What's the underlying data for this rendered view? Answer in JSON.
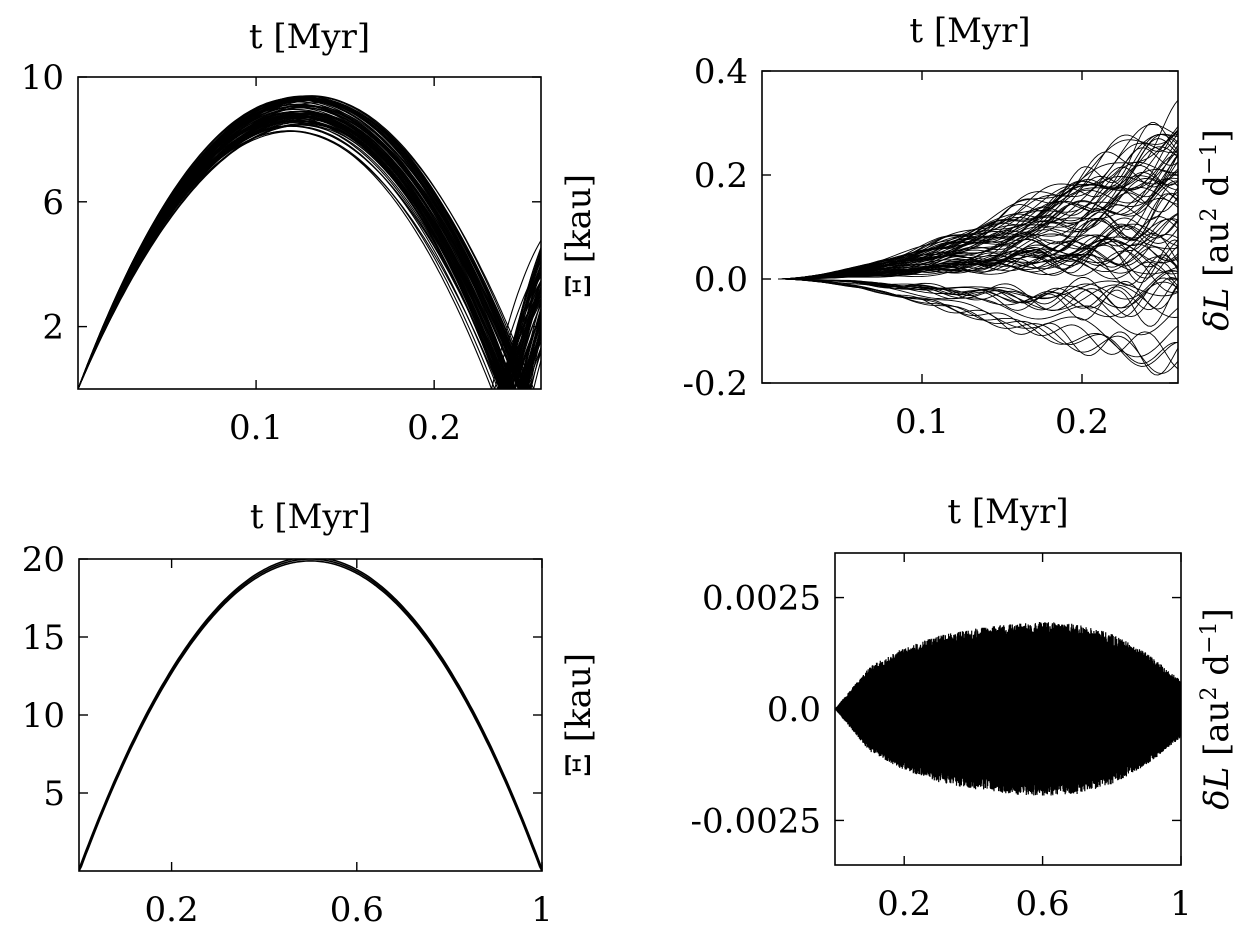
{
  "chart_data": [
    {
      "type": "line",
      "title": "t [Myr]",
      "xlabel": "",
      "ylabel": "Ξ [kau]",
      "xlim": [
        0.0,
        0.26
      ],
      "ylim": [
        0.0,
        10.0
      ],
      "xticks": [
        0.1,
        0.2
      ],
      "yticks": [
        2,
        6,
        10
      ],
      "xtick_labels": [
        "0.1",
        "0.2"
      ],
      "ytick_labels": [
        "2",
        "6",
        "10"
      ],
      "grid": false,
      "legend": "none",
      "description_of_series": "ensemble of ~80 parabolic trajectories starting at 0, peaking between 8.2 and 9.4 near t=0.11–0.14, returning to 0 near t=0.23–0.255, then rising again",
      "series_envelope": {
        "peak_min": 8.2,
        "peak_max": 9.4,
        "peak_t_min": 0.115,
        "peak_t_max": 0.14,
        "end_t_min": 0.228,
        "end_t_max": 0.255
      }
    },
    {
      "type": "line",
      "title": "t [Myr]",
      "xlabel": "",
      "ylabel": "δL [au² d⁻¹]",
      "ylabel_parts": {
        "sym": "δL",
        "open": "[au",
        "sup1": "2",
        "mid": " d",
        "sup2": "−1",
        "close": "]"
      },
      "xlim": [
        0.0,
        0.26
      ],
      "ylim": [
        -0.2,
        0.4
      ],
      "xticks": [
        0.1,
        0.2
      ],
      "yticks": [
        -0.2,
        0.0,
        0.2,
        0.4
      ],
      "xtick_labels": [
        "0.1",
        "0.2"
      ],
      "ytick_labels": [
        "-0.2",
        "0.0",
        "0.2",
        "0.4"
      ],
      "grid": false,
      "legend": "none",
      "description_of_series": "ensemble of ~80 trajectories fanning out from 0 at t≈0.01, upper envelope reaching 0.31 at t=0.26, lower envelope near -0.16 at t≈0.2",
      "series_envelope": {
        "start_t": 0.01,
        "max_final": 0.31,
        "min_final": -0.16
      }
    },
    {
      "type": "line",
      "title": "t [Myr]",
      "xlabel": "",
      "ylabel": "Ξ [kau]",
      "xlim": [
        0.0,
        1.0
      ],
      "ylim": [
        0.0,
        20.0
      ],
      "xticks": [
        0.2,
        0.6,
        1.0
      ],
      "yticks": [
        5,
        10,
        15,
        20
      ],
      "xtick_labels": [
        "0.2",
        "0.6",
        "1"
      ],
      "ytick_labels": [
        "5",
        "10",
        "15",
        "20"
      ],
      "grid": false,
      "legend": "none",
      "x": [
        0.0,
        0.1,
        0.2,
        0.3,
        0.4,
        0.5,
        0.6,
        0.7,
        0.8,
        0.9,
        1.0
      ],
      "values": [
        0.0,
        7.2,
        12.8,
        16.8,
        19.2,
        20.0,
        19.2,
        16.8,
        12.8,
        7.2,
        0.0
      ]
    },
    {
      "type": "line",
      "title": "t [Myr]",
      "xlabel": "",
      "ylabel": "δL [au² d⁻¹]",
      "ylabel_parts": {
        "sym": "δL",
        "open": "[au",
        "sup1": "2",
        "mid": " d",
        "sup2": "−1",
        "close": "]"
      },
      "xlim": [
        0.0,
        1.0
      ],
      "ylim": [
        -0.0035,
        0.0035
      ],
      "xticks": [
        0.2,
        0.6,
        1.0
      ],
      "yticks": [
        -0.0025,
        0.0,
        0.0025
      ],
      "xtick_labels": [
        "0.2",
        "0.6",
        "1"
      ],
      "ytick_labels": [
        "-0.0025",
        "0.0",
        "0.0025"
      ],
      "grid": false,
      "legend": "none",
      "description_of_series": "dense rapidly oscillating signal about 0 with amplitude envelope growing to about ±0.0019 near t=0.6–0.75 and shrinking toward t=1",
      "envelope_x": [
        0.0,
        0.1,
        0.2,
        0.3,
        0.4,
        0.5,
        0.6,
        0.7,
        0.8,
        0.9,
        1.0
      ],
      "envelope_amp": [
        0.0,
        0.0009,
        0.0013,
        0.00155,
        0.0017,
        0.0018,
        0.00185,
        0.0018,
        0.0016,
        0.0012,
        0.0006
      ]
    }
  ]
}
